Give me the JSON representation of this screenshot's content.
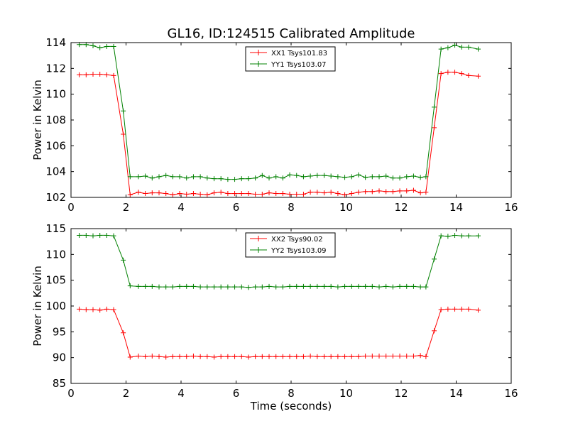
{
  "chart_data": [
    {
      "type": "line",
      "title": "GL16, ID:124515 Calibrated Amplitude",
      "xlabel": "",
      "ylabel": "Power in Kelvin",
      "xlim": [
        0,
        16
      ],
      "ylim": [
        102,
        114
      ],
      "xticks": [
        "0",
        "2",
        "4",
        "6",
        "8",
        "10",
        "12",
        "14",
        "16"
      ],
      "yticks": [
        "102",
        "104",
        "106",
        "108",
        "110",
        "112",
        "114"
      ],
      "grid": false,
      "legend_position": "top-center",
      "x": [
        0.3,
        0.55,
        0.8,
        1.05,
        1.3,
        1.55,
        1.9,
        2.15,
        2.45,
        2.7,
        2.95,
        3.2,
        3.45,
        3.7,
        3.95,
        4.2,
        4.45,
        4.7,
        4.95,
        5.2,
        5.45,
        5.7,
        5.95,
        6.2,
        6.45,
        6.7,
        6.95,
        7.2,
        7.45,
        7.7,
        7.95,
        8.2,
        8.45,
        8.7,
        8.95,
        9.2,
        9.45,
        9.7,
        9.95,
        10.2,
        10.45,
        10.7,
        10.95,
        11.2,
        11.45,
        11.7,
        11.95,
        12.2,
        12.45,
        12.7,
        12.9,
        13.2,
        13.45,
        13.7,
        13.95,
        14.2,
        14.45,
        14.8
      ],
      "series": [
        {
          "name": "XX1 Tsys101.83",
          "color": "#ff0000",
          "values": [
            111.5,
            111.5,
            111.55,
            111.55,
            111.5,
            111.45,
            106.9,
            102.2,
            102.4,
            102.3,
            102.35,
            102.35,
            102.3,
            102.2,
            102.3,
            102.25,
            102.3,
            102.25,
            102.2,
            102.35,
            102.4,
            102.3,
            102.3,
            102.3,
            102.3,
            102.25,
            102.25,
            102.35,
            102.3,
            102.3,
            102.25,
            102.25,
            102.25,
            102.4,
            102.4,
            102.35,
            102.4,
            102.3,
            102.2,
            102.3,
            102.4,
            102.45,
            102.45,
            102.5,
            102.45,
            102.45,
            102.5,
            102.5,
            102.55,
            102.35,
            102.4,
            107.4,
            111.6,
            111.7,
            111.7,
            111.6,
            111.45,
            111.4
          ]
        },
        {
          "name": "YY1 Tsys103.07",
          "color": "#008000",
          "values": [
            113.85,
            113.85,
            113.75,
            113.6,
            113.7,
            113.7,
            108.7,
            103.6,
            103.6,
            103.65,
            103.5,
            103.6,
            103.7,
            103.6,
            103.6,
            103.5,
            103.6,
            103.6,
            103.5,
            103.45,
            103.45,
            103.4,
            103.4,
            103.45,
            103.45,
            103.5,
            103.7,
            103.5,
            103.6,
            103.5,
            103.75,
            103.7,
            103.6,
            103.65,
            103.7,
            103.7,
            103.65,
            103.6,
            103.55,
            103.6,
            103.75,
            103.55,
            103.6,
            103.6,
            103.65,
            103.5,
            103.5,
            103.6,
            103.65,
            103.55,
            103.6,
            109.0,
            113.5,
            113.6,
            113.8,
            113.65,
            113.65,
            113.5
          ]
        }
      ]
    },
    {
      "type": "line",
      "title": "",
      "xlabel": "Time (seconds)",
      "ylabel": "Power in Kelvin",
      "xlim": [
        0,
        16
      ],
      "ylim": [
        85,
        115
      ],
      "xticks": [
        "0",
        "2",
        "4",
        "6",
        "8",
        "10",
        "12",
        "14",
        "16"
      ],
      "yticks": [
        "85",
        "90",
        "95",
        "100",
        "105",
        "110",
        "115"
      ],
      "grid": false,
      "legend_position": "top-center",
      "x": [
        0.3,
        0.55,
        0.8,
        1.05,
        1.3,
        1.55,
        1.9,
        2.15,
        2.45,
        2.7,
        2.95,
        3.2,
        3.45,
        3.7,
        3.95,
        4.2,
        4.45,
        4.7,
        4.95,
        5.2,
        5.45,
        5.7,
        5.95,
        6.2,
        6.45,
        6.7,
        6.95,
        7.2,
        7.45,
        7.7,
        7.95,
        8.2,
        8.45,
        8.7,
        8.95,
        9.2,
        9.45,
        9.7,
        9.95,
        10.2,
        10.45,
        10.7,
        10.95,
        11.2,
        11.45,
        11.7,
        11.95,
        12.2,
        12.45,
        12.7,
        12.9,
        13.2,
        13.45,
        13.7,
        13.95,
        14.2,
        14.45,
        14.8
      ],
      "series": [
        {
          "name": "XX2 Tsys90.02",
          "color": "#ff0000",
          "values": [
            99.4,
            99.3,
            99.3,
            99.2,
            99.4,
            99.3,
            94.8,
            90.1,
            90.3,
            90.2,
            90.3,
            90.2,
            90.1,
            90.2,
            90.2,
            90.2,
            90.3,
            90.2,
            90.2,
            90.1,
            90.2,
            90.2,
            90.2,
            90.2,
            90.1,
            90.2,
            90.2,
            90.2,
            90.2,
            90.2,
            90.2,
            90.2,
            90.2,
            90.3,
            90.2,
            90.2,
            90.2,
            90.2,
            90.2,
            90.2,
            90.2,
            90.3,
            90.3,
            90.3,
            90.3,
            90.3,
            90.3,
            90.3,
            90.3,
            90.4,
            90.2,
            95.2,
            99.3,
            99.4,
            99.4,
            99.4,
            99.4,
            99.2
          ]
        },
        {
          "name": "YY2 Tsys103.09",
          "color": "#008000",
          "values": [
            113.7,
            113.7,
            113.6,
            113.7,
            113.7,
            113.6,
            108.9,
            103.9,
            103.8,
            103.8,
            103.8,
            103.7,
            103.7,
            103.7,
            103.8,
            103.8,
            103.8,
            103.7,
            103.7,
            103.7,
            103.7,
            103.7,
            103.7,
            103.7,
            103.6,
            103.7,
            103.7,
            103.8,
            103.7,
            103.7,
            103.8,
            103.8,
            103.8,
            103.8,
            103.8,
            103.8,
            103.8,
            103.7,
            103.8,
            103.8,
            103.8,
            103.8,
            103.8,
            103.7,
            103.8,
            103.7,
            103.8,
            103.8,
            103.8,
            103.7,
            103.7,
            109.1,
            113.6,
            113.5,
            113.7,
            113.6,
            113.6,
            113.6
          ]
        }
      ]
    }
  ]
}
